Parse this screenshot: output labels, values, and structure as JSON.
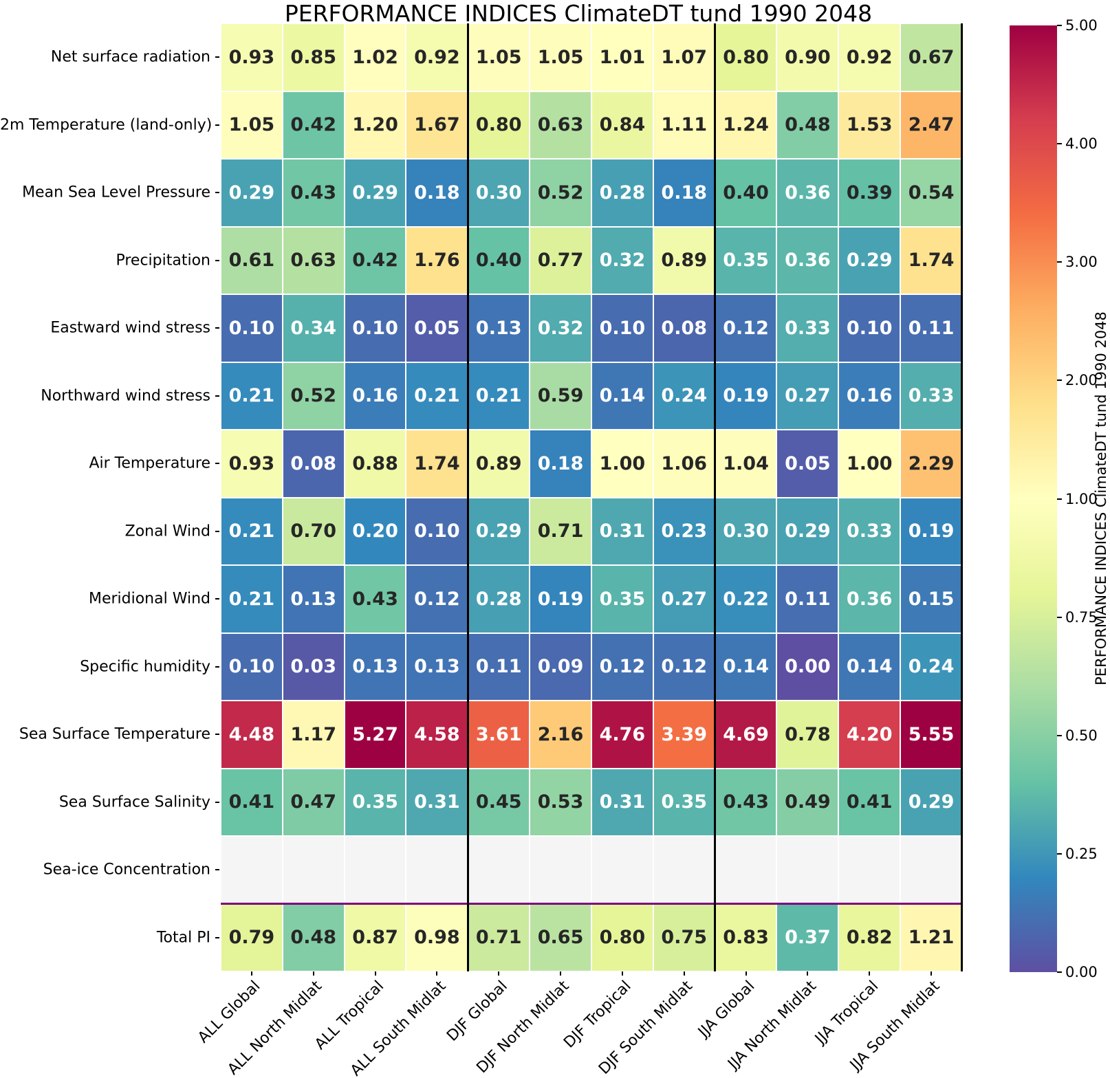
{
  "chart_data": {
    "type": "heatmap",
    "title": "PERFORMANCE INDICES ClimateDT tund 1990 2048",
    "columns": [
      "ALL Global",
      "ALL North Midlat",
      "ALL Tropical",
      "ALL South Midlat",
      "DJF Global",
      "DJF North Midlat",
      "DJF Tropical",
      "DJF South Midlat",
      "JJA Global",
      "JJA North Midlat",
      "JJA Tropical",
      "JJA South Midlat"
    ],
    "rows": [
      "Net surface radiation",
      "2m Temperature (land-only)",
      "Mean Sea Level Pressure",
      "Precipitation",
      "Eastward wind stress",
      "Northward wind stress",
      "Air Temperature",
      "Zonal Wind",
      "Meridional Wind",
      "Specific humidity",
      "Sea Surface Temperature",
      "Sea Surface Salinity",
      "Sea-ice Concentration",
      "Total PI"
    ],
    "values": [
      [
        0.93,
        0.85,
        1.02,
        0.92,
        1.05,
        1.05,
        1.01,
        1.07,
        0.8,
        0.9,
        0.92,
        0.67
      ],
      [
        1.05,
        0.42,
        1.2,
        1.67,
        0.8,
        0.63,
        0.84,
        1.11,
        1.24,
        0.48,
        1.53,
        2.47
      ],
      [
        0.29,
        0.43,
        0.29,
        0.18,
        0.3,
        0.52,
        0.28,
        0.18,
        0.4,
        0.36,
        0.39,
        0.54
      ],
      [
        0.61,
        0.63,
        0.42,
        1.76,
        0.4,
        0.77,
        0.32,
        0.89,
        0.35,
        0.36,
        0.29,
        1.74
      ],
      [
        0.1,
        0.34,
        0.1,
        0.05,
        0.13,
        0.32,
        0.1,
        0.08,
        0.12,
        0.33,
        0.1,
        0.11
      ],
      [
        0.21,
        0.52,
        0.16,
        0.21,
        0.21,
        0.59,
        0.14,
        0.24,
        0.19,
        0.27,
        0.16,
        0.33
      ],
      [
        0.93,
        0.08,
        0.88,
        1.74,
        0.89,
        0.18,
        1.0,
        1.06,
        1.04,
        0.05,
        1.0,
        2.29
      ],
      [
        0.21,
        0.7,
        0.2,
        0.1,
        0.29,
        0.71,
        0.31,
        0.23,
        0.3,
        0.29,
        0.33,
        0.19
      ],
      [
        0.21,
        0.13,
        0.43,
        0.12,
        0.28,
        0.19,
        0.35,
        0.27,
        0.22,
        0.11,
        0.36,
        0.15
      ],
      [
        0.1,
        0.03,
        0.13,
        0.13,
        0.11,
        0.09,
        0.12,
        0.12,
        0.14,
        0.0,
        0.14,
        0.24
      ],
      [
        4.48,
        1.17,
        5.27,
        4.58,
        3.61,
        2.16,
        4.76,
        3.39,
        4.69,
        0.78,
        4.2,
        5.55
      ],
      [
        0.41,
        0.47,
        0.35,
        0.31,
        0.45,
        0.53,
        0.31,
        0.35,
        0.43,
        0.49,
        0.41,
        0.29
      ],
      [
        null,
        null,
        null,
        null,
        null,
        null,
        null,
        null,
        null,
        null,
        null,
        null
      ],
      [
        0.79,
        0.48,
        0.87,
        0.98,
        0.71,
        0.65,
        0.8,
        0.75,
        0.83,
        0.37,
        0.82,
        1.21
      ]
    ],
    "value_format": "two-decimals",
    "column_groups": [
      "ALL",
      "DJF",
      "JJA"
    ],
    "group_separators_after_columns": [
      4,
      8,
      12
    ],
    "colorbar": {
      "label": "PERFORMANCE INDICES ClimateDT tund 1990 2048",
      "tick_labels_top_to_bottom": [
        "5.00",
        "4.00",
        "3.00",
        "2.00",
        "1.00",
        "0.75",
        "0.50",
        "0.25",
        "0.00"
      ],
      "boundaries": [
        0,
        0.25,
        0.5,
        0.75,
        1.0,
        2.0,
        3.0,
        4.0,
        5.0
      ],
      "colormap": "Spectral_r",
      "stops_low_to_high": [
        "#5e4fa2",
        "#3288bd",
        "#66c2a5",
        "#abdda4",
        "#e6f598",
        "#ffffbf",
        "#fee08b",
        "#fdae61",
        "#f46d43",
        "#d53e4f",
        "#9e0142"
      ]
    },
    "style": {
      "background": "#ffffff",
      "grid_line_color": "#ffffff",
      "missing_cell_color": "#f5f5f5",
      "group_separator_color": "#000000",
      "total_row_separator_color": "#800080",
      "annotation_text_dark": "#262626",
      "annotation_text_light": "#ffffff"
    },
    "axis": {
      "x_label_rotation_deg": 45,
      "grid": false,
      "legend_position": "right-colorbar"
    }
  }
}
